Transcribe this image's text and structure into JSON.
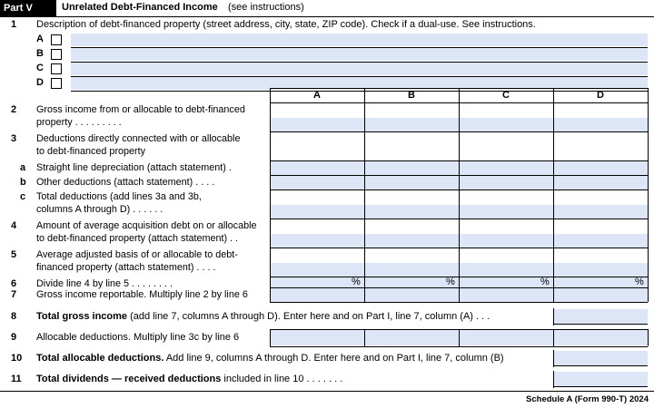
{
  "header": {
    "part": "Part V",
    "title": "Unrelated Debt-Financed Income",
    "note": "(see instructions)"
  },
  "line1": {
    "number": "1",
    "text": "Description of debt-financed property (street address, city, state, ZIP code). Check if a dual-use. See instructions.",
    "rows": [
      "A",
      "B",
      "C",
      "D"
    ]
  },
  "columns": [
    "A",
    "B",
    "C",
    "D"
  ],
  "lines": [
    {
      "number": "2",
      "text": [
        "Gross income from or allocable to debt-financed",
        "property . . . . . . . . ."
      ]
    },
    {
      "number": "3",
      "text": [
        "Deductions directly connected with or allocable",
        "to debt-financed property"
      ]
    },
    {
      "number": "a",
      "text": [
        "Straight line depreciation (attach statement) ."
      ]
    },
    {
      "number": "b",
      "text": [
        "Other deductions (attach statement) . . . ."
      ]
    },
    {
      "number": "c",
      "text": [
        "Total deductions (add lines 3a and 3b,",
        "columns A through D) . . . . . ."
      ]
    },
    {
      "number": "4",
      "text": [
        "Amount of average acquisition debt on or allocable",
        "to debt-financed property (attach statement) . ."
      ]
    },
    {
      "number": "5",
      "text": [
        "Average adjusted basis of or allocable to debt-",
        "financed property (attach statement) . . . ."
      ]
    },
    {
      "number": "6",
      "text": [
        "Divide line 4 by line 5 . . . . . . . ."
      ],
      "cells": [
        "%",
        "%",
        "%",
        "%"
      ]
    },
    {
      "number": "7",
      "text": [
        "Gross income reportable. Multiply line 2 by line 6"
      ]
    }
  ],
  "totals": [
    {
      "number": "8",
      "bold": "Total gross income",
      "text": " (add line 7, columns A through D). Enter here and on Part I, line 7, column (A) . . ."
    },
    {
      "number": "9",
      "text": "Allocable deductions. Multiply line 3c by line 6"
    },
    {
      "number": "10",
      "bold": "Total allocable deductions.",
      "text": " Add line 9, columns A through D. Enter here and on Part I, line 7, column (B)"
    },
    {
      "number": "11",
      "bold": "Total dividends — received deductions",
      "text": " included in line 10 . . . . . . ."
    }
  ],
  "footer": "Schedule A (Form 990-T) 2024"
}
